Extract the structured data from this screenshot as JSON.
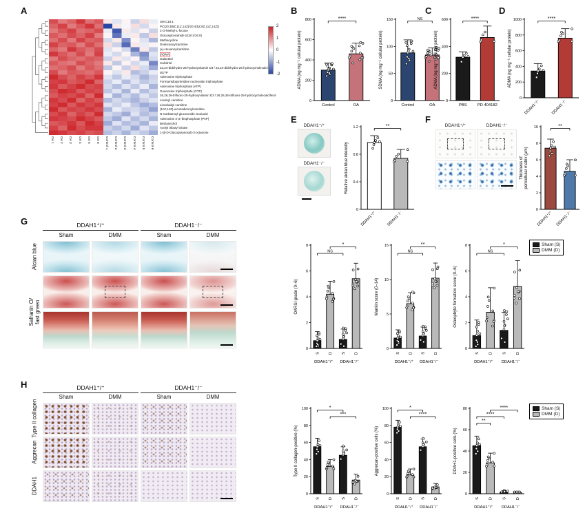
{
  "panels": {
    "A": "A",
    "B": "B",
    "C": "C",
    "D": "D",
    "E": "E",
    "F": "F",
    "G": "G",
    "H": "H"
  },
  "chart_data": {
    "heatmap": {
      "type": "heatmap",
      "col_labels": [
        "OA 1",
        "OA 2",
        "OA 3",
        "OA 4",
        "OA 5",
        "OA 6",
        "Control 1",
        "Control 2",
        "Control 3",
        "Control 4",
        "Control 5",
        "Control 6"
      ],
      "row_labels": [
        "SM C16:1",
        "PC(20:3(8Z,11Z,14Z)/20:4(5Z,8Z,11Z,14Z))",
        "2-O-Methyl-L-fucose",
        "Glucosylceramide (d18:1/16:0)",
        "Methacycline",
        "Dodecanoylcarnitine",
        "(±)-Hexanoylcarnitine",
        "ADMA",
        "Galactitol",
        "Calcitriol",
        "23,24-didehydro-25-hydroxyvitamin D3 / 23,24-didehydro-25-hydroxycholecalciferol",
        "dGTP",
        "Adenosine triphosphate",
        "Formamidopyrimidine nucleoside triphosphate",
        "Adenosine triphosphate (ATP)",
        "Guanosine triphosphate (GTP)",
        "26,26,26-trifluoro-25-hydroxyvitamin D3 / 26,26,26-trifluoro-25-hydroxycholecalciferol",
        "Linoleyl carnitine",
        "Linoelaidyl carnitine",
        "(11Z,14Z)-eicosadienoylcarnitine",
        "N-Carbamoyl glucuronide isoniazid",
        "Adenosine 3',5'-bisphosphate (PAP)",
        "Bethanechol",
        "Acetyl tributyl citrate",
        "1-(β-D-Glucopyranosyl)-3-octanone"
      ],
      "highlight_row": 7,
      "colorbar_ticks": [
        "2",
        "1",
        "0",
        "-1",
        "-2"
      ],
      "matrix": [
        [
          1.6,
          1.2,
          1.4,
          1.8,
          1.3,
          1.5,
          0.2,
          -0.3,
          0.1,
          -0.5,
          0.3,
          -0.2
        ],
        [
          1.4,
          1.7,
          1.2,
          1.5,
          1.8,
          1.3,
          -2.0,
          0.2,
          -0.1,
          0.3,
          -0.4,
          0.1
        ],
        [
          1.2,
          1.5,
          1.7,
          1.3,
          1.4,
          1.6,
          -0.2,
          -1.8,
          0.2,
          -0.3,
          0.1,
          -0.5
        ],
        [
          1.5,
          1.3,
          1.6,
          1.4,
          1.7,
          1.2,
          0.1,
          -1.5,
          -0.2,
          0.2,
          -0.6,
          0.3
        ],
        [
          1.3,
          1.6,
          1.2,
          1.7,
          1.4,
          1.5,
          -0.4,
          0.2,
          -1.2,
          0.1,
          -0.3,
          -0.8
        ],
        [
          1.7,
          1.4,
          1.5,
          1.2,
          1.6,
          1.3,
          0.3,
          -0.5,
          -1.6,
          0.2,
          -0.2,
          0.1
        ],
        [
          1.4,
          1.2,
          1.8,
          1.5,
          1.3,
          1.6,
          -0.3,
          0.1,
          -0.4,
          -1.4,
          0.2,
          -0.6
        ],
        [
          1.8,
          1.5,
          1.3,
          1.6,
          1.2,
          1.7,
          -0.2,
          -0.4,
          0.1,
          -0.8,
          -1.2,
          -0.3
        ],
        [
          1.2,
          1.6,
          1.4,
          1.3,
          1.5,
          1.4,
          -0.5,
          0.2,
          -0.3,
          0.1,
          -1.0,
          -0.4
        ],
        [
          1.5,
          1.3,
          1.2,
          1.6,
          1.4,
          1.2,
          0.2,
          -0.6,
          0.1,
          -0.4,
          -0.2,
          -1.3
        ],
        [
          1.3,
          1.4,
          1.6,
          1.2,
          1.5,
          1.3,
          -0.6,
          0.1,
          -0.5,
          0.3,
          -0.4,
          -0.9
        ],
        [
          1.6,
          1.2,
          1.5,
          1.4,
          1.3,
          1.5,
          0.1,
          -0.3,
          0.2,
          -0.7,
          -0.5,
          -0.2
        ],
        [
          1.9,
          1.6,
          1.4,
          1.7,
          1.5,
          1.8,
          -0.3,
          -0.6,
          -0.2,
          -0.4,
          -0.8,
          -0.5
        ],
        [
          1.7,
          1.8,
          1.5,
          1.6,
          1.9,
          1.4,
          -0.5,
          -0.2,
          -0.7,
          -0.3,
          -0.6,
          -0.4
        ],
        [
          1.8,
          1.5,
          1.7,
          1.9,
          1.6,
          1.7,
          -0.4,
          -0.7,
          -0.3,
          -0.6,
          -0.2,
          -0.8
        ],
        [
          1.6,
          1.9,
          1.8,
          1.5,
          1.7,
          1.6,
          -0.6,
          -0.3,
          -0.8,
          -0.2,
          -0.7,
          -0.4
        ],
        [
          1.5,
          1.7,
          1.6,
          1.8,
          1.4,
          1.9,
          -0.2,
          -0.8,
          -0.4,
          -0.7,
          -0.3,
          -0.6
        ],
        [
          1.8,
          1.6,
          1.9,
          1.4,
          1.7,
          1.5,
          -0.7,
          -0.4,
          -0.6,
          -0.8,
          -0.5,
          -0.3
        ],
        [
          1.7,
          1.9,
          1.5,
          1.8,
          1.6,
          1.8,
          -0.3,
          -0.5,
          -0.2,
          -0.6,
          -0.9,
          -0.7
        ],
        [
          1.9,
          1.5,
          1.7,
          1.6,
          1.8,
          1.6,
          -0.8,
          -0.2,
          -0.5,
          -0.4,
          -0.6,
          -1.0
        ],
        [
          1.6,
          1.8,
          1.4,
          1.7,
          1.5,
          1.9,
          -0.4,
          -0.6,
          -0.9,
          -0.3,
          -0.7,
          -0.5
        ],
        [
          1.8,
          1.7,
          1.6,
          1.9,
          1.7,
          1.5,
          -0.6,
          -0.9,
          -0.3,
          -0.7,
          -0.4,
          -0.8
        ],
        [
          1.5,
          1.6,
          1.8,
          1.5,
          1.9,
          1.7,
          -0.9,
          -0.3,
          -0.7,
          -0.5,
          -0.8,
          -0.2
        ],
        [
          1.7,
          1.4,
          1.9,
          1.6,
          1.8,
          1.8,
          -0.5,
          -0.7,
          -0.4,
          -0.9,
          -0.3,
          -0.6
        ],
        [
          1.9,
          1.8,
          1.6,
          1.7,
          1.5,
          1.6,
          -0.7,
          -0.5,
          -0.8,
          -0.4,
          -0.6,
          -0.9
        ]
      ]
    },
    "adma_oa": {
      "type": "bar",
      "ylabel": "ADMA (ng mg⁻¹ cellular protein)",
      "ylim": [
        0,
        800
      ],
      "yticks": [
        0,
        200,
        400,
        600,
        800
      ],
      "categories": [
        "Control",
        "OA"
      ],
      "values": [
        300,
        460
      ],
      "errors": [
        70,
        105
      ],
      "colors": [
        "#2b4570",
        "#c4737b"
      ],
      "ndots": [
        13,
        14
      ],
      "sig": [
        {
          "from": 0,
          "to": 1,
          "label": "****",
          "level": 0
        }
      ]
    },
    "sdma_oa": {
      "type": "bar",
      "ylabel": "SDMA (ng mg⁻¹ cellular protein)",
      "ylim": [
        0,
        150
      ],
      "yticks": [
        0,
        50,
        100,
        150
      ],
      "categories": [
        "Control",
        "OA"
      ],
      "values": [
        88,
        84
      ],
      "errors": [
        24,
        13
      ],
      "colors": [
        "#2b4570",
        "#c4737b"
      ],
      "ndots": [
        13,
        20
      ],
      "sig": [
        {
          "from": 0,
          "to": 1,
          "label": "NS",
          "level": 0
        }
      ]
    },
    "adma_pd": {
      "type": "bar",
      "ylabel": "ADMA (ng mg⁻¹ cellular protein)",
      "ylim": [
        0,
        600
      ],
      "yticks": [
        0,
        200,
        400,
        600
      ],
      "categories": [
        "PBS",
        "PD 404182"
      ],
      "values": [
        320,
        465
      ],
      "errors": [
        40,
        85
      ],
      "colors": [
        "#1a1a1a",
        "#b23b35"
      ],
      "ndots": [
        5,
        5
      ],
      "sig": [
        {
          "from": 0,
          "to": 1,
          "label": "****",
          "level": 0
        }
      ]
    },
    "adma_genotype": {
      "type": "bar",
      "ylabel": "ADMA (ng mg⁻¹ cellular protein)",
      "ylim": [
        0,
        1000
      ],
      "yticks": [
        0,
        200,
        400,
        600,
        800,
        1000
      ],
      "categories": [
        "DDAH1⁺/⁺",
        "DDAH1⁻/⁻"
      ],
      "values": [
        340,
        760
      ],
      "errors": [
        95,
        120
      ],
      "colors": [
        "#1a1a1a",
        "#b23b35"
      ],
      "ndots": [
        6,
        7
      ],
      "xrot": 45,
      "sig": [
        {
          "from": 0,
          "to": 1,
          "label": "****",
          "level": 0
        }
      ]
    },
    "alcian_intensity": {
      "type": "bar",
      "ylabel": "Relative alcian blue intensity",
      "ylim": [
        0,
        1.2
      ],
      "yticks": [
        0,
        0.4,
        0.8,
        1.2
      ],
      "categories": [
        "DDAH1⁺/⁺",
        "DDAH1⁻/⁻"
      ],
      "values": [
        0.97,
        0.74
      ],
      "errors": [
        0.1,
        0.13
      ],
      "colors": [
        "#ffffff",
        "#b9b9b9"
      ],
      "ndots": [
        6,
        6
      ],
      "xrot": 45,
      "sig": [
        {
          "from": 0,
          "to": 1,
          "label": "**",
          "level": 0
        }
      ]
    },
    "pcm_thickness": {
      "type": "bar",
      "ylabel": [
        "Thickness of",
        "pericellular matrix (μm)"
      ],
      "ylim": [
        0,
        10
      ],
      "yticks": [
        0,
        2,
        4,
        6,
        8,
        10
      ],
      "categories": [
        "DDAH1⁺/⁺",
        "DDAH1⁻/⁻"
      ],
      "values": [
        7.4,
        4.6
      ],
      "errors": [
        1.1,
        1.4
      ],
      "colors": [
        "#9c4a3f",
        "#4e79a8"
      ],
      "ndots": [
        7,
        7
      ],
      "xrot": 45,
      "sig": [
        {
          "from": 0,
          "to": 1,
          "label": "**",
          "level": 0
        }
      ]
    },
    "oarsi": {
      "type": "bar",
      "ylabel": "OARSI grade (0–6)",
      "ylim": [
        0,
        8
      ],
      "yticks": [
        0,
        2,
        4,
        6,
        8
      ],
      "categories": [
        "S",
        "D",
        "S",
        "D"
      ],
      "values": [
        0.6,
        4.2,
        0.7,
        5.4
      ],
      "errors": [
        0.7,
        1.0,
        0.8,
        1.2
      ],
      "colors": [
        "#1a1a1a",
        "#b9b9b9",
        "#1a1a1a",
        "#b9b9b9"
      ],
      "ndots": [
        10,
        10,
        10,
        10
      ],
      "xrot": 90,
      "sig": [
        {
          "from": 1,
          "to": 3,
          "label": "*",
          "level": 0
        },
        {
          "from": 0,
          "to": 2,
          "label": "NS",
          "level": 1
        }
      ],
      "groups": [
        {
          "from": 0,
          "to": 1,
          "label": "DDAH1⁺/⁺"
        },
        {
          "from": 2,
          "to": 3,
          "label": "DDAH1⁻/⁻"
        }
      ]
    },
    "mankin": {
      "type": "bar",
      "ylabel": "Mankin score (0–14)",
      "ylim": [
        0,
        15
      ],
      "yticks": [
        0,
        5,
        10,
        15
      ],
      "categories": [
        "S",
        "D",
        "S",
        "D"
      ],
      "values": [
        1.5,
        6.5,
        1.8,
        10.2
      ],
      "errors": [
        1.2,
        1.6,
        1.3,
        2.2
      ],
      "colors": [
        "#1a1a1a",
        "#b9b9b9",
        "#1a1a1a",
        "#b9b9b9"
      ],
      "ndots": [
        10,
        11,
        10,
        11
      ],
      "xrot": 90,
      "sig": [
        {
          "from": 1,
          "to": 3,
          "label": "**",
          "level": 0
        },
        {
          "from": 0,
          "to": 2,
          "label": "NS",
          "level": 1
        }
      ],
      "groups": [
        {
          "from": 0,
          "to": 1,
          "label": "DDAH1⁺/⁺"
        },
        {
          "from": 2,
          "to": 3,
          "label": "DDAH1⁻/⁻"
        }
      ]
    },
    "osteophyte": {
      "type": "bar",
      "ylabel": "Osteophyte formation score (0–6)",
      "ylim": [
        0,
        8
      ],
      "yticks": [
        0,
        2,
        4,
        6,
        8
      ],
      "categories": [
        "S",
        "D",
        "S",
        "D"
      ],
      "values": [
        1.0,
        2.8,
        1.4,
        4.8
      ],
      "errors": [
        1.2,
        1.9,
        1.4,
        2.0
      ],
      "colors": [
        "#1a1a1a",
        "#b9b9b9",
        "#1a1a1a",
        "#b9b9b9"
      ],
      "ndots": [
        10,
        10,
        10,
        10
      ],
      "xrot": 90,
      "sig": [
        {
          "from": 1,
          "to": 3,
          "label": "*",
          "level": 0
        },
        {
          "from": 0,
          "to": 2,
          "label": "NS",
          "level": 1
        }
      ],
      "groups": [
        {
          "from": 0,
          "to": 1,
          "label": "DDAH1⁺/⁺"
        },
        {
          "from": 2,
          "to": 3,
          "label": "DDAH1⁻/⁻"
        }
      ]
    },
    "collagen2": {
      "type": "bar",
      "ylabel": "Type II collagen-positive (%)",
      "ylim": [
        0,
        100
      ],
      "yticks": [
        0,
        20,
        40,
        60,
        80,
        100
      ],
      "categories": [
        "S",
        "D",
        "S",
        "D"
      ],
      "values": [
        55,
        32,
        45,
        16
      ],
      "errors": [
        10,
        8,
        10,
        7
      ],
      "colors": [
        "#1a1a1a",
        "#b9b9b9",
        "#1a1a1a",
        "#b9b9b9"
      ],
      "ndots": [
        7,
        8,
        7,
        8
      ],
      "xrot": 90,
      "sig": [
        {
          "from": 0,
          "to": 2,
          "label": "*",
          "level": 0
        },
        {
          "from": 1,
          "to": 3,
          "label": "***",
          "level": 1
        }
      ],
      "groups": [
        {
          "from": 0,
          "to": 1,
          "label": "DDAH1⁺/⁺"
        },
        {
          "from": 2,
          "to": 3,
          "label": "DDAH1⁻/⁻"
        }
      ]
    },
    "aggrecan": {
      "type": "bar",
      "ylabel": "Aggrecan-positive cells (%)",
      "ylim": [
        0,
        100
      ],
      "yticks": [
        0,
        20,
        40,
        60,
        80,
        100
      ],
      "categories": [
        "S",
        "D",
        "S",
        "D"
      ],
      "values": [
        78,
        22,
        55,
        8
      ],
      "errors": [
        8,
        7,
        9,
        4
      ],
      "colors": [
        "#1a1a1a",
        "#b9b9b9",
        "#1a1a1a",
        "#b9b9b9"
      ],
      "ndots": [
        7,
        8,
        7,
        8
      ],
      "xrot": 90,
      "sig": [
        {
          "from": 0,
          "to": 2,
          "label": "*",
          "level": 0
        },
        {
          "from": 1,
          "to": 3,
          "label": "****",
          "level": 1
        }
      ],
      "groups": [
        {
          "from": 0,
          "to": 1,
          "label": "DDAH1⁺/⁺"
        },
        {
          "from": 2,
          "to": 3,
          "label": "DDAH1⁻/⁻"
        }
      ]
    },
    "ddah1_cells": {
      "type": "bar",
      "ylabel": "DDAH1-positive cells (%)",
      "ylim": [
        0,
        80
      ],
      "yticks": [
        0,
        20,
        40,
        60,
        80
      ],
      "categories": [
        "S",
        "D",
        "S",
        "D"
      ],
      "values": [
        45,
        29,
        1.5,
        1.0
      ],
      "errors": [
        9,
        9,
        1.5,
        1.0
      ],
      "colors": [
        "#1a1a1a",
        "#b9b9b9",
        "#1a1a1a",
        "#b9b9b9"
      ],
      "ndots": [
        7,
        8,
        7,
        8
      ],
      "xrot": 90,
      "sig": [
        {
          "from": 1,
          "to": 3,
          "label": "****",
          "level": 0
        },
        {
          "from": 0,
          "to": 2,
          "label": "****",
          "level": 1
        },
        {
          "from": 0,
          "to": 1,
          "label": "**",
          "level": 2
        }
      ],
      "groups": [
        {
          "from": 0,
          "to": 1,
          "label": "DDAH1⁺/⁺"
        },
        {
          "from": 2,
          "to": 3,
          "label": "DDAH1⁻/⁻"
        }
      ]
    }
  },
  "panelE": {
    "img_labels": [
      "DDAH1⁺/⁺",
      "DDAH1⁻/⁻"
    ]
  },
  "panelF": {
    "img_labels": [
      "DDAH1⁺/⁺",
      "DDAH1⁻/⁻"
    ]
  },
  "panelG": {
    "genotype_headers": [
      "DDAH1⁺/⁺",
      "DDAH1⁻/⁻"
    ],
    "condition_headers": [
      "Sham",
      "DMM",
      "Sham",
      "DMM"
    ],
    "row_label_1": "Alcian blue",
    "row_label_2a": "Safranin O/",
    "row_label_2b": "fast green",
    "rows": [
      {
        "stains": [
          "alcian",
          "alcian-l",
          "alcian",
          "alcian-f"
        ],
        "scalebar": true
      },
      {
        "stains": [
          "saf",
          "saf",
          "saf",
          "saf-l"
        ],
        "dash": [
          1,
          3
        ],
        "scalebar": true
      },
      {
        "stains": [
          "zoom",
          "zoom-l",
          "zoom",
          "zoom-f"
        ],
        "scalebar": true
      }
    ],
    "legend": [
      {
        "label": "Sham (S)",
        "color": "#1a1a1a"
      },
      {
        "label": "DMM (D)",
        "color": "#b9b9b9"
      }
    ]
  },
  "panelH": {
    "genotype_headers": [
      "DDAH1⁺/⁺",
      "DDAH1⁻/⁻"
    ],
    "condition_headers": [
      "Sham",
      "DMM",
      "Sham",
      "DMM"
    ],
    "row_labels": [
      "Type II collagen",
      "Aggrecan",
      "DDAH1"
    ],
    "rows": [
      {
        "stains": [
          "ihc3",
          "ihc1",
          "ihc2",
          "ihc0"
        ]
      },
      {
        "stains": [
          "ihc3",
          "ihc1",
          "ihc2",
          "ihc0"
        ]
      },
      {
        "stains": [
          "ihc2",
          "ihc1",
          "ihc0",
          "ihc0"
        ],
        "scalebar": true
      }
    ],
    "legend": [
      {
        "label": "Sham (S)",
        "color": "#1a1a1a"
      },
      {
        "label": "DMM (D)",
        "color": "#b9b9b9"
      }
    ]
  }
}
